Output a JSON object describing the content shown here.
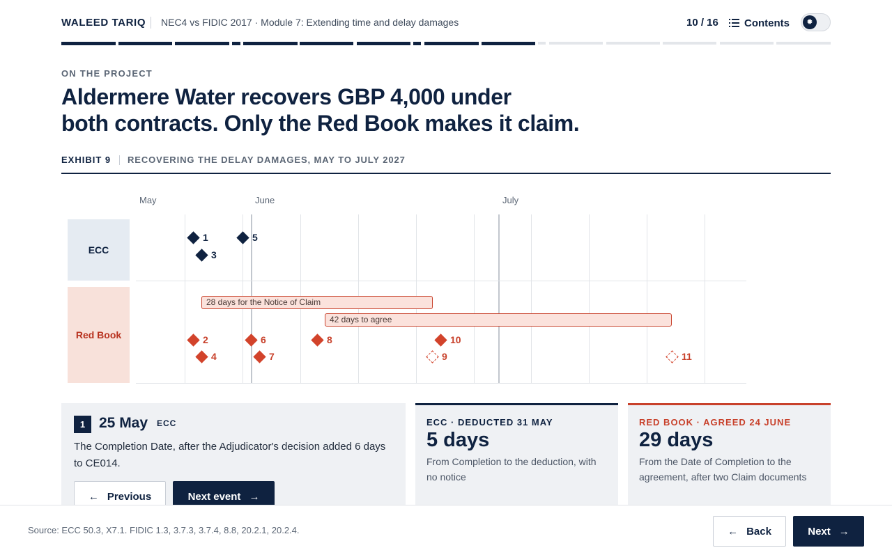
{
  "header": {
    "author": "WALEED TARIQ",
    "course": "NEC4 vs FIDIC 2017 · Module 7: Extending time and delay damages",
    "page_count": "10 / 16",
    "contents_label": "Contents",
    "theme_icon": "sun-icon"
  },
  "progress": {
    "current": 10,
    "total": 16,
    "completed_fraction": 0.625
  },
  "section": {
    "eyebrow": "ON THE PROJECT",
    "headline_line1": "Aldermere Water recovers GBP 4,000 under",
    "headline_line2": "both contracts. Only the Red Book makes it claim."
  },
  "exhibit": {
    "number": "EXHIBIT 9",
    "title": "RECOVERING THE DELAY DAMAGES, MAY TO JULY 2027"
  },
  "timeline": {
    "months": [
      "May",
      "June",
      "July"
    ],
    "rows": [
      {
        "label": "ECC",
        "events": [
          "1",
          "3",
          "5"
        ]
      },
      {
        "label": "Red Book",
        "events": [
          "2",
          "4",
          "6",
          "7",
          "8",
          "9",
          "10",
          "11"
        ]
      }
    ],
    "periods": [
      {
        "label": "28 days for the Notice of Claim"
      },
      {
        "label": "42 days to agree"
      }
    ],
    "event_labels": {
      "e1": "1",
      "e3": "3",
      "e5": "5",
      "e2": "2",
      "e4": "4",
      "e6": "6",
      "e7": "7",
      "e8": "8",
      "e9": "9",
      "e10": "10",
      "e11": "11"
    },
    "pending_events": [
      "9",
      "11"
    ]
  },
  "selected_event": {
    "number": "1",
    "date": "25 May",
    "contract": "ECC",
    "description": "The Completion Date, after the Adjudicator's decision added 6 days to CE014.",
    "prev_label": "Previous",
    "next_label": "Next event"
  },
  "stats": {
    "ecc": {
      "label": "ECC · DEDUCTED 31 MAY",
      "value": "5 days",
      "description": "From Completion to the deduction, with no notice"
    },
    "red_book": {
      "label": "RED BOOK · AGREED 24 JUNE",
      "value": "29 days",
      "description": "From the Date of Completion to the agreement, after two Claim documents"
    }
  },
  "footer": {
    "source": "Source: ECC 50.3, X7.1. FIDIC 1.3, 3.7.3, 3.7.4, 8.8, 20.2.1, 20.2.4.",
    "back_label": "Back",
    "next_label": "Next"
  },
  "colors": {
    "navy": "#0f2240",
    "red": "#c8412b",
    "ecc_row_bg": "#e5ebf2",
    "red_row_bg": "#f8e1da"
  }
}
